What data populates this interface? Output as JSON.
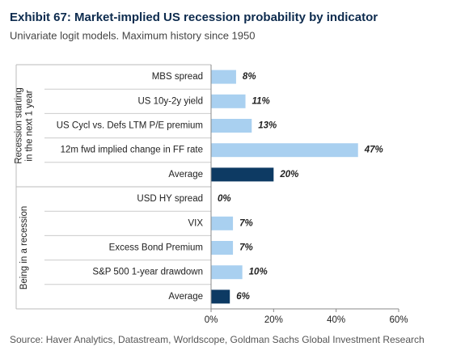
{
  "chart_data": {
    "type": "grouped-hbar",
    "title": "Exhibit 67: Market-implied US recession probability by indicator",
    "subtitle": "Univariate logit models. Maximum history since 1950",
    "source": "Source: Haver Analytics, Datastream, Worldscope, Goldman Sachs Global Investment Research",
    "groups": [
      {
        "name": [
          "Recession starting",
          "in the next 1 year"
        ],
        "categories": [
          "MBS spread",
          "US 10y-2y yield",
          "US Cycl vs. Defs LTM P/E premium",
          "12m fwd implied change in FF rate",
          "Average"
        ],
        "values": [
          8,
          11,
          13,
          47,
          20
        ],
        "value_labels": [
          "8%",
          "11%",
          "13%",
          "47%",
          "20%"
        ],
        "colors": [
          "#a9d0f0",
          "#a9d0f0",
          "#a9d0f0",
          "#a9d0f0",
          "#0d3a63"
        ]
      },
      {
        "name": [
          "Being in a recession"
        ],
        "categories": [
          "USD HY spread",
          "VIX",
          "Excess Bond Premium",
          "S&P 500 1-year drawdown",
          "Average"
        ],
        "values": [
          0,
          7,
          7,
          10,
          6
        ],
        "value_labels": [
          "0%",
          "7%",
          "7%",
          "10%",
          "6%"
        ],
        "colors": [
          "#a9d0f0",
          "#a9d0f0",
          "#a9d0f0",
          "#a9d0f0",
          "#0d3a63"
        ]
      }
    ],
    "xlim": [
      0,
      60
    ],
    "xticks": [
      {
        "value": 0,
        "label": "0%"
      },
      {
        "value": 20,
        "label": "20%"
      },
      {
        "value": 40,
        "label": "40%"
      },
      {
        "value": 60,
        "label": "60%"
      }
    ]
  }
}
